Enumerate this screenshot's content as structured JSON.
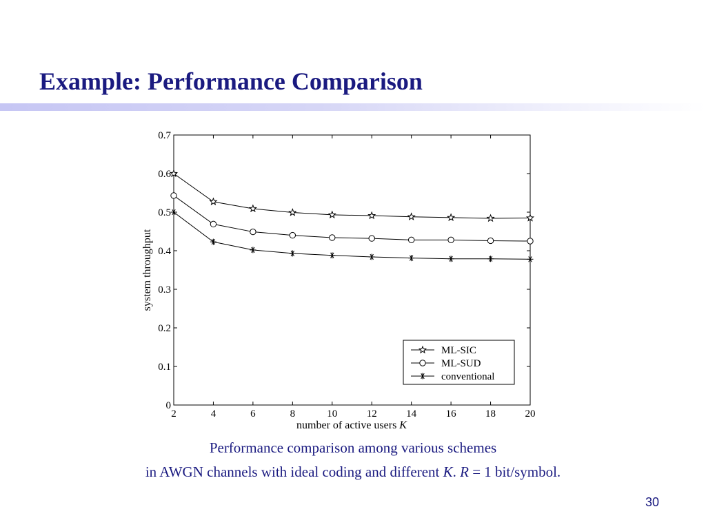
{
  "slide": {
    "title": "Example: Performance Comparison",
    "caption_line1": "Performance comparison among various schemes",
    "caption_line2_prefix": "in AWGN channels with ideal coding and different ",
    "caption_k": "K",
    "caption_sep": ". ",
    "caption_r": "R",
    "caption_tail": " = 1 bit/symbol.",
    "page_number": "30",
    "title_color": "#1a1a80"
  },
  "chart_data": {
    "type": "line",
    "xlabel": "number of active users ",
    "xlabel_var": "K",
    "ylabel": "system throughput",
    "xlim": [
      2,
      20
    ],
    "ylim": [
      0,
      0.7
    ],
    "x_ticks": [
      "2",
      "4",
      "6",
      "8",
      "10",
      "12",
      "14",
      "16",
      "18",
      "20"
    ],
    "y_ticks": [
      "0",
      "0.1",
      "0.2",
      "0.3",
      "0.4",
      "0.5",
      "0.6",
      "0.7"
    ],
    "x": [
      2,
      4,
      6,
      8,
      10,
      12,
      14,
      16,
      18,
      20
    ],
    "grid": false,
    "legend": "bottom-right",
    "series": [
      {
        "name": "ML-SIC",
        "marker": "star",
        "values": [
          0.6,
          0.527,
          0.509,
          0.499,
          0.493,
          0.491,
          0.488,
          0.486,
          0.484,
          0.485
        ]
      },
      {
        "name": "ML-SUD",
        "marker": "circle",
        "values": [
          0.543,
          0.469,
          0.449,
          0.44,
          0.434,
          0.432,
          0.428,
          0.428,
          0.426,
          0.425
        ]
      },
      {
        "name": "conventional",
        "marker": "asterisk",
        "values": [
          0.5,
          0.423,
          0.402,
          0.393,
          0.388,
          0.384,
          0.381,
          0.379,
          0.379,
          0.378
        ]
      }
    ]
  }
}
